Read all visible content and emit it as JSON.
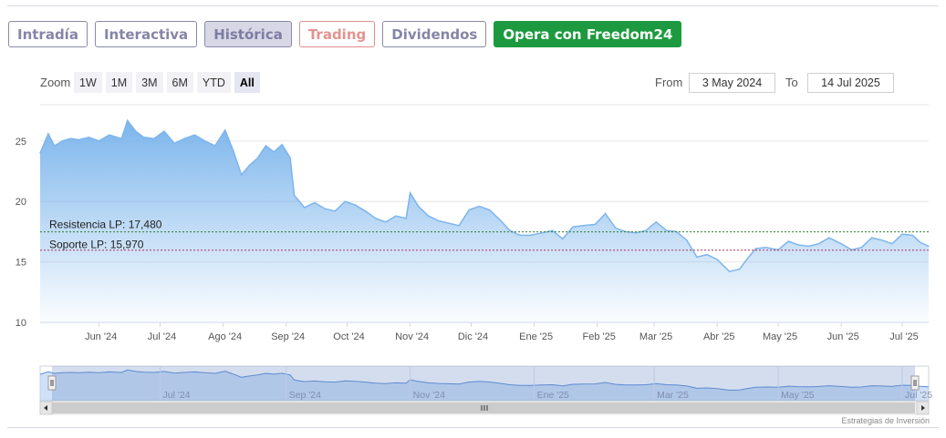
{
  "tabs": [
    {
      "label": "Intradía",
      "state": "normal"
    },
    {
      "label": "Interactiva",
      "state": "normal"
    },
    {
      "label": "Histórica",
      "state": "active"
    },
    {
      "label": "Trading",
      "state": "trading"
    },
    {
      "label": "Dividendos",
      "state": "normal"
    },
    {
      "label": "Opera con Freedom24",
      "state": "cta"
    }
  ],
  "zoom": {
    "label": "Zoom",
    "buttons": [
      "1W",
      "1M",
      "3M",
      "6M",
      "YTD",
      "All"
    ],
    "selected": "All"
  },
  "range": {
    "from_label": "From",
    "from_value": "3 May 2024",
    "to_label": "To",
    "to_value": "14 Jul 2025"
  },
  "credit": "Estrategias de Inversión",
  "colors": {
    "line": "#7cb5ec",
    "resistance": "#2e7d32",
    "support": "#b0305a",
    "tab_active_bg": "#d7d7e6",
    "cta": "#1d9a3f"
  },
  "chart_data": {
    "type": "area",
    "title": "",
    "xlabel": "",
    "ylabel": "",
    "x_range": [
      "2024-05-03",
      "2025-07-14"
    ],
    "ylim": [
      10,
      28
    ],
    "yticks": [
      10,
      15,
      20,
      25
    ],
    "xticks": [
      {
        "date": "2024-06-01",
        "label": "Jun '24"
      },
      {
        "date": "2024-07-01",
        "label": "Jul '24"
      },
      {
        "date": "2024-08-01",
        "label": "Ago '24"
      },
      {
        "date": "2024-09-01",
        "label": "Sep '24"
      },
      {
        "date": "2024-10-01",
        "label": "Oct '24"
      },
      {
        "date": "2024-11-01",
        "label": "Nov '24"
      },
      {
        "date": "2024-12-01",
        "label": "Dic '24"
      },
      {
        "date": "2025-01-01",
        "label": "Ene '25"
      },
      {
        "date": "2025-02-01",
        "label": "Feb '25"
      },
      {
        "date": "2025-03-01",
        "label": "Mar '25"
      },
      {
        "date": "2025-04-01",
        "label": "Abr '25"
      },
      {
        "date": "2025-05-01",
        "label": "May '25"
      },
      {
        "date": "2025-06-01",
        "label": "Jun '25"
      },
      {
        "date": "2025-07-01",
        "label": "Jul '25"
      }
    ],
    "navigator_xticks": [
      {
        "date": "2024-07-01",
        "label": "Jul '24"
      },
      {
        "date": "2024-09-01",
        "label": "Sep '24"
      },
      {
        "date": "2024-11-01",
        "label": "Nov '24"
      },
      {
        "date": "2025-01-01",
        "label": "Ene '25"
      },
      {
        "date": "2025-03-01",
        "label": "Mar '25"
      },
      {
        "date": "2025-05-01",
        "label": "May '25"
      },
      {
        "date": "2025-07-01",
        "label": "Jul '25"
      }
    ],
    "grid": true,
    "series": [
      {
        "x": [
          "2024-05-03",
          "2024-05-07",
          "2024-05-10",
          "2024-05-14",
          "2024-05-18",
          "2024-05-22",
          "2024-05-27",
          "2024-06-01",
          "2024-06-06",
          "2024-06-12",
          "2024-06-15",
          "2024-06-19",
          "2024-06-23",
          "2024-06-28",
          "2024-07-03",
          "2024-07-08",
          "2024-07-13",
          "2024-07-18",
          "2024-07-23",
          "2024-07-28",
          "2024-08-02",
          "2024-08-06",
          "2024-08-10",
          "2024-08-14",
          "2024-08-18",
          "2024-08-22",
          "2024-08-26",
          "2024-08-30",
          "2024-09-03",
          "2024-09-05",
          "2024-09-10",
          "2024-09-15",
          "2024-09-20",
          "2024-09-25",
          "2024-09-30",
          "2024-10-05",
          "2024-10-10",
          "2024-10-15",
          "2024-10-20",
          "2024-10-25",
          "2024-10-30",
          "2024-11-01",
          "2024-11-05",
          "2024-11-10",
          "2024-11-15",
          "2024-11-20",
          "2024-11-25",
          "2024-11-30",
          "2024-12-05",
          "2024-12-10",
          "2024-12-15",
          "2024-12-20",
          "2024-12-25",
          "2024-12-30",
          "2025-01-05",
          "2025-01-10",
          "2025-01-15",
          "2025-01-20",
          "2025-01-25",
          "2025-01-31",
          "2025-02-05",
          "2025-02-10",
          "2025-02-15",
          "2025-02-20",
          "2025-02-25",
          "2025-03-02",
          "2025-03-07",
          "2025-03-12",
          "2025-03-17",
          "2025-03-22",
          "2025-03-27",
          "2025-04-01",
          "2025-04-07",
          "2025-04-12",
          "2025-04-16",
          "2025-04-20",
          "2025-04-25",
          "2025-05-01",
          "2025-05-06",
          "2025-05-11",
          "2025-05-16",
          "2025-05-21",
          "2025-05-26",
          "2025-06-01",
          "2025-06-06",
          "2025-06-11",
          "2025-06-16",
          "2025-06-21",
          "2025-06-26",
          "2025-07-01",
          "2025-07-06",
          "2025-07-10",
          "2025-07-14"
        ],
        "y": [
          24.0,
          25.6,
          24.6,
          25.0,
          25.2,
          25.1,
          25.3,
          25.0,
          25.5,
          25.2,
          26.7,
          25.8,
          25.3,
          25.2,
          25.8,
          24.8,
          25.2,
          25.5,
          25.0,
          24.6,
          25.9,
          24.2,
          22.2,
          23.0,
          23.6,
          24.6,
          24.1,
          24.7,
          23.6,
          20.5,
          19.5,
          19.9,
          19.4,
          19.2,
          20.0,
          19.7,
          19.2,
          18.6,
          18.3,
          18.8,
          18.6,
          20.7,
          19.6,
          18.8,
          18.4,
          18.2,
          18.0,
          19.3,
          19.6,
          19.3,
          18.5,
          17.6,
          17.2,
          17.2,
          17.4,
          17.6,
          16.9,
          17.9,
          18.0,
          18.1,
          19.0,
          17.8,
          17.5,
          17.4,
          17.6,
          18.3,
          17.6,
          17.5,
          16.8,
          15.4,
          15.6,
          15.2,
          14.2,
          14.4,
          15.3,
          16.1,
          16.2,
          16.0,
          16.7,
          16.4,
          16.3,
          16.5,
          17.0,
          16.5,
          16.0,
          16.2,
          17.0,
          16.8,
          16.5,
          17.3,
          17.2,
          16.6,
          16.3
        ]
      }
    ],
    "annotations": [
      {
        "label": "Resistencia LP: 17,480",
        "value": 17.48
      },
      {
        "label": "Soporte LP: 15,970",
        "value": 15.97
      }
    ]
  }
}
